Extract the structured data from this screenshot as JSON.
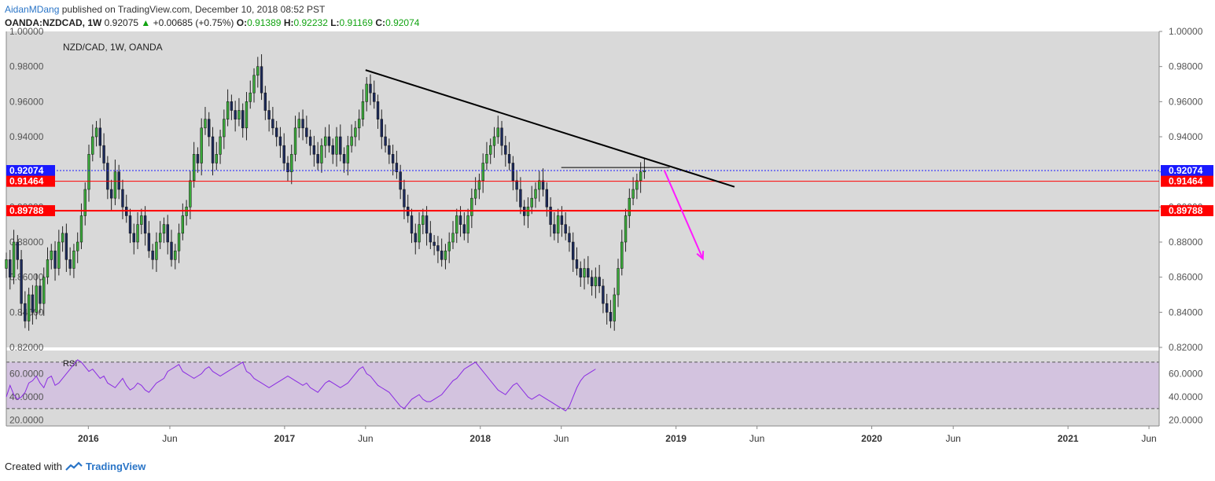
{
  "header": {
    "author": "AidanMDang",
    "published": "published on TradingView.com, December 10, 2018 08:52 PST",
    "symbol": "OANDA:NZDCAD, 1W",
    "last": "0.92075",
    "change": "+0.00685 (+0.75%)",
    "open_label": "O:",
    "open": "0.91389",
    "high_label": "H:",
    "high": "0.92232",
    "low_label": "L:",
    "low": "0.91169",
    "close_label": "C:",
    "close": "0.92074"
  },
  "footer": {
    "created_with": "Created with",
    "brand": "TradingView"
  },
  "chart_data": {
    "type": "candlestick",
    "title": "NZD/CAD, 1W, OANDA",
    "price_ticks": [
      "1.00000",
      "0.98000",
      "0.96000",
      "0.94000",
      "0.92000",
      "0.90000",
      "0.88000",
      "0.86000",
      "0.84000",
      "0.82000"
    ],
    "price_ylim": [
      0.82,
      1.0
    ],
    "x_ticks": [
      "2016",
      "Jun",
      "2017",
      "Jun",
      "2018",
      "Jun",
      "2019",
      "Jun",
      "2020",
      "Jun",
      "2021",
      "Jun"
    ],
    "x_tick_dates": [
      "2016-01-01",
      "2016-06-01",
      "2017-01-01",
      "2017-06-01",
      "2018-01-01",
      "2018-06-01",
      "2019-01-01",
      "2019-06-01",
      "2020-01-01",
      "2020-06-01",
      "2021-01-01",
      "2021-06-01"
    ],
    "horizontal_levels": [
      {
        "value": 0.92074,
        "label": "0.92074",
        "style": "dotted",
        "color": "#1a1aff"
      },
      {
        "value": 0.91464,
        "label": "0.91464",
        "style": "solid",
        "color": "#ff0000"
      },
      {
        "value": 0.89788,
        "label": "0.89788",
        "style": "solid-thick",
        "color": "#ff0000"
      }
    ],
    "trendline": {
      "from": {
        "date": "2017-06-01",
        "price": 0.978
      },
      "to": {
        "date": "2019-04-20",
        "price": 0.9115
      },
      "color": "#000000"
    },
    "resistance_segment": {
      "from": {
        "date": "2018-06-01",
        "price": 0.9225
      },
      "to": {
        "date": "2018-12-20",
        "price": 0.9225
      }
    },
    "projection_arrow": {
      "from": {
        "date": "2018-12-10",
        "price": 0.921
      },
      "to": {
        "date": "2019-02-20",
        "price": 0.8705
      },
      "color": "#ff1aff"
    },
    "weekly_closes": [
      0.87,
      0.86,
      0.88,
      0.87,
      0.845,
      0.835,
      0.85,
      0.84,
      0.855,
      0.845,
      0.86,
      0.87,
      0.875,
      0.865,
      0.88,
      0.885,
      0.87,
      0.865,
      0.875,
      0.88,
      0.895,
      0.91,
      0.93,
      0.94,
      0.945,
      0.935,
      0.925,
      0.91,
      0.905,
      0.92,
      0.91,
      0.9,
      0.895,
      0.885,
      0.88,
      0.89,
      0.895,
      0.885,
      0.875,
      0.87,
      0.88,
      0.885,
      0.89,
      0.88,
      0.87,
      0.875,
      0.885,
      0.895,
      0.9,
      0.915,
      0.93,
      0.925,
      0.945,
      0.95,
      0.94,
      0.925,
      0.93,
      0.94,
      0.95,
      0.96,
      0.955,
      0.95,
      0.955,
      0.945,
      0.96,
      0.965,
      0.975,
      0.98,
      0.965,
      0.955,
      0.95,
      0.945,
      0.94,
      0.935,
      0.925,
      0.92,
      0.93,
      0.945,
      0.95,
      0.945,
      0.94,
      0.935,
      0.93,
      0.925,
      0.935,
      0.94,
      0.935,
      0.93,
      0.94,
      0.93,
      0.925,
      0.935,
      0.94,
      0.945,
      0.95,
      0.96,
      0.97,
      0.965,
      0.96,
      0.95,
      0.94,
      0.935,
      0.93,
      0.925,
      0.92,
      0.91,
      0.9,
      0.895,
      0.885,
      0.88,
      0.89,
      0.895,
      0.885,
      0.88,
      0.878,
      0.875,
      0.87,
      0.875,
      0.88,
      0.885,
      0.895,
      0.89,
      0.885,
      0.895,
      0.905,
      0.91,
      0.915,
      0.925,
      0.93,
      0.935,
      0.94,
      0.945,
      0.935,
      0.93,
      0.925,
      0.915,
      0.91,
      0.9,
      0.895,
      0.9,
      0.905,
      0.91,
      0.915,
      0.91,
      0.9,
      0.89,
      0.885,
      0.895,
      0.89,
      0.885,
      0.88,
      0.87,
      0.865,
      0.86,
      0.865,
      0.86,
      0.855,
      0.86,
      0.855,
      0.845,
      0.84,
      0.835,
      0.85,
      0.865,
      0.88,
      0.895,
      0.905,
      0.91,
      0.915,
      0.92,
      0.9207
    ]
  },
  "rsi": {
    "label": "RSI",
    "ticks": [
      "60.0000",
      "40.0000",
      "20.0000"
    ],
    "ylim": [
      15,
      80
    ],
    "upper_band": 70,
    "lower_band": 30,
    "values": [
      40,
      50,
      42,
      38,
      40,
      44,
      52,
      54,
      58,
      52,
      48,
      56,
      58,
      50,
      52,
      56,
      60,
      64,
      68,
      72,
      70,
      66,
      62,
      64,
      60,
      56,
      58,
      52,
      50,
      48,
      52,
      56,
      50,
      46,
      48,
      52,
      50,
      46,
      44,
      48,
      52,
      54,
      56,
      62,
      64,
      66,
      68,
      62,
      60,
      58,
      56,
      58,
      60,
      64,
      66,
      62,
      60,
      58,
      60,
      62,
      64,
      66,
      68,
      70,
      62,
      60,
      56,
      54,
      52,
      50,
      48,
      50,
      52,
      54,
      56,
      58,
      56,
      54,
      52,
      50,
      52,
      48,
      46,
      44,
      48,
      52,
      54,
      52,
      50,
      48,
      50,
      52,
      56,
      60,
      64,
      66,
      60,
      58,
      54,
      50,
      48,
      46,
      44,
      40,
      36,
      32,
      30,
      34,
      38,
      40,
      42,
      38,
      36,
      36,
      38,
      40,
      42,
      46,
      50,
      54,
      56,
      60,
      64,
      66,
      68,
      70,
      66,
      62,
      58,
      54,
      50,
      46,
      44,
      42,
      46,
      50,
      52,
      48,
      44,
      40,
      38,
      40,
      42,
      40,
      38,
      36,
      34,
      32,
      30,
      28,
      32,
      40,
      48,
      54,
      58,
      60,
      62,
      64
    ]
  }
}
